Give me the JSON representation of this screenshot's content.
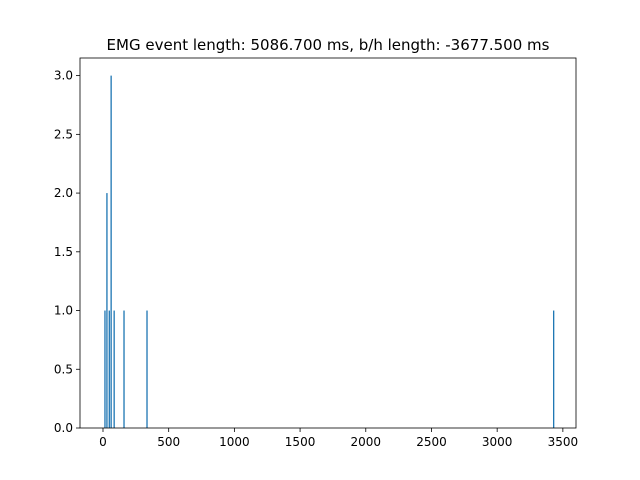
{
  "chart_data": {
    "type": "bar",
    "title": "EMG event length: 5086.700 ms, b/h length: -3677.500 ms",
    "xlabel": "",
    "ylabel": "",
    "xlim": [
      -175,
      3600
    ],
    "ylim": [
      0,
      3.15
    ],
    "x_ticks": [
      0,
      500,
      1000,
      1500,
      2000,
      2500,
      3000,
      3500
    ],
    "y_ticks": [
      0.0,
      0.5,
      1.0,
      1.5,
      2.0,
      2.5,
      3.0
    ],
    "x_tick_labels": [
      "0",
      "500",
      "1000",
      "1500",
      "2000",
      "2500",
      "3000",
      "3500"
    ],
    "y_tick_labels": [
      "0.0",
      "0.5",
      "1.0",
      "1.5",
      "2.0",
      "2.5",
      "3.0"
    ],
    "bar_width": 10,
    "color": "#1f77b4",
    "grid": false,
    "bars": [
      {
        "x": 15,
        "value": 1
      },
      {
        "x": 30,
        "value": 2
      },
      {
        "x": 48,
        "value": 1
      },
      {
        "x": 62,
        "value": 3
      },
      {
        "x": 85,
        "value": 1
      },
      {
        "x": 160,
        "value": 1
      },
      {
        "x": 335,
        "value": 1
      },
      {
        "x": 3430,
        "value": 1
      }
    ]
  }
}
